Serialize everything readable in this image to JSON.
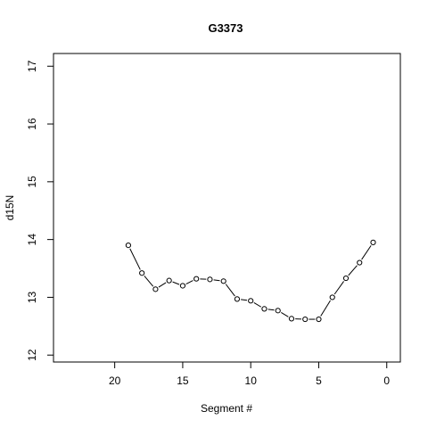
{
  "chart_data": {
    "type": "line",
    "title": "G3373",
    "xlabel": "Segment #",
    "ylabel": "d15N",
    "xlim": [
      24.5,
      -1
    ],
    "ylim": [
      11.88,
      17.22
    ],
    "x_ticks": [
      20,
      15,
      10,
      5,
      0
    ],
    "y_ticks": [
      12,
      13,
      14,
      15,
      16,
      17
    ],
    "x_reversed": true,
    "grid": false,
    "legend": "none",
    "marker": "open-circle",
    "series": [
      {
        "x": [
          19,
          18,
          17,
          16,
          15,
          14,
          13,
          12,
          11,
          10,
          9,
          8,
          7,
          6,
          5,
          4,
          3,
          2,
          1
        ],
        "y": [
          13.9,
          13.42,
          13.14,
          13.29,
          13.2,
          13.32,
          13.31,
          13.28,
          12.97,
          12.94,
          12.8,
          12.77,
          12.63,
          12.62,
          12.62,
          13.0,
          13.33,
          13.6,
          13.95
        ]
      }
    ]
  }
}
